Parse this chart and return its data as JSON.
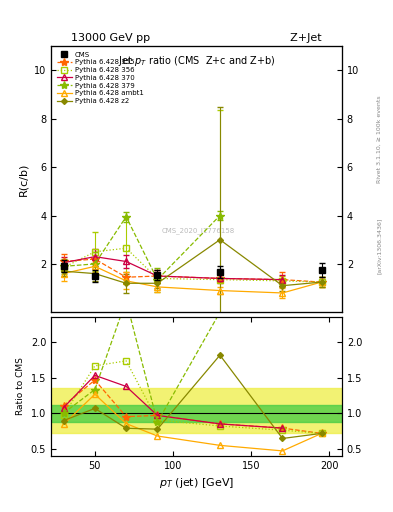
{
  "title_top_left": "13000 GeV pp",
  "title_top_right": "Z+Jet",
  "plot_title": "Jet p_{T} ratio (CMS  Z+c and Z+b)",
  "xlabel": "p_{T} (jet) [GeV]",
  "ylabel_top": "R(c/b)",
  "ylabel_bot": "Ratio to CMS",
  "right_label": "Rivet 3.1.10, ≥ 100k events",
  "watermark": "CMS_2020_I1776158",
  "arxiv": "[arXiv:1306.3436]",
  "cms_x": [
    30,
    50,
    90,
    130,
    195
  ],
  "cms_y": [
    1.9,
    1.5,
    1.55,
    1.65,
    1.75
  ],
  "cms_yerr": [
    0.25,
    0.25,
    0.2,
    0.25,
    0.3
  ],
  "p355_x": [
    30,
    50,
    70,
    90,
    130,
    170,
    195
  ],
  "p355_y": [
    2.1,
    2.2,
    1.45,
    1.5,
    1.4,
    1.35,
    1.25
  ],
  "p355_yerr": [
    0.3,
    0.3,
    0.2,
    0.25,
    0.15,
    0.3,
    0.2
  ],
  "p356_x": [
    30,
    50,
    70,
    90,
    130,
    170,
    195
  ],
  "p356_y": [
    1.85,
    2.5,
    2.65,
    1.4,
    1.35,
    1.3,
    1.25
  ],
  "p356_yerr": [
    0.2,
    0.8,
    1.3,
    0.2,
    7.0,
    0.2,
    0.2
  ],
  "p370_x": [
    30,
    50,
    70,
    90,
    130,
    170
  ],
  "p370_y": [
    2.05,
    2.3,
    2.1,
    1.5,
    1.4,
    1.35
  ],
  "p370_yerr": [
    0.25,
    0.3,
    0.25,
    0.25,
    0.2,
    0.2
  ],
  "p379_x": [
    30,
    50,
    70,
    90,
    130
  ],
  "p379_y": [
    1.9,
    2.0,
    3.95,
    1.35,
    4.0
  ],
  "p379_yerr": [
    0.3,
    0.5,
    0.2,
    0.5,
    0.2
  ],
  "pambt1_x": [
    30,
    50,
    70,
    90,
    130,
    170,
    195
  ],
  "pambt1_y": [
    1.6,
    1.9,
    1.3,
    1.05,
    0.9,
    0.8,
    1.25
  ],
  "pambt1_yerr": [
    0.3,
    0.25,
    0.35,
    0.2,
    0.15,
    0.2,
    0.2
  ],
  "pz2_x": [
    30,
    50,
    70,
    90,
    130,
    170,
    195
  ],
  "pz2_y": [
    1.7,
    1.6,
    1.2,
    1.2,
    3.0,
    1.1,
    1.25
  ],
  "pz2_yerr": [
    0.2,
    0.3,
    0.4,
    0.2,
    5.5,
    0.2,
    0.2
  ],
  "band_green_lo": 0.88,
  "band_green_hi": 1.12,
  "band_yellow_lo": 0.72,
  "band_yellow_hi": 1.35,
  "color_cms": "#000000",
  "color_355": "#ff6600",
  "color_356": "#aacc00",
  "color_370": "#cc0044",
  "color_379": "#88bb00",
  "color_ambt1": "#ffaa00",
  "color_z2": "#888800",
  "color_green_band": "#44cc44",
  "color_yellow_band": "#eeee44"
}
